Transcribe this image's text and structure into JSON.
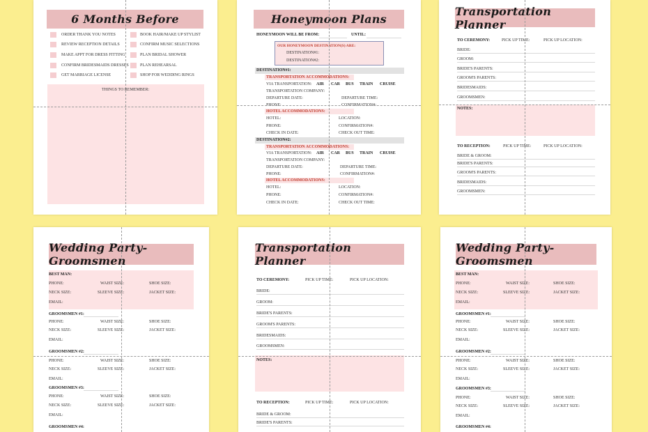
{
  "colors": {
    "background": "#fbee8f",
    "title_bar": "#e9bcbd",
    "pink_box": "#fde3e4",
    "accent": "#c0392b"
  },
  "pages": {
    "months_before": {
      "title": "6 Months Before",
      "left_items": [
        "ORDER THANK YOU NOTES",
        "REVIEW RECEPTION DETAILS",
        "MAKE APPT FOR DRESS FITTING",
        "CONFIRM BRIDESMAIDS DRESSES",
        "GET MARRIAGE LICENSE"
      ],
      "right_items": [
        "BOOK HAIR/MAKE UP STYLIST",
        "CONFIRM MUSIC SELECTIONS",
        "PLAN BRIDAL SHOWER",
        "PLAN REHEARSAL",
        "SHOP FOR WEDDING RINGS"
      ],
      "remember_label": "THINGS TO REMEMBER:"
    },
    "honeymoon": {
      "title": "Honeymoon Plans",
      "will_be_from": "HONEYMOON WILL BE FROM:",
      "until": "UNTIL:",
      "destinations_heading": "OUR HONEYMOON DESTINATION(S) ARE:",
      "dest1_label": "DESTINATION#1:",
      "dest2_label": "DESTINATION#2:",
      "section1": "DESTINATION#1:",
      "section2": "DESTINATION#2:",
      "transport_heading": "TRANSPORTATION ACCOMMODATIONS:",
      "via": "VIA TRANSPORTATION:",
      "modes": [
        "AIR",
        "CAR",
        "BUS",
        "TRAIN",
        "CRUISE"
      ],
      "company": "TRANSPORTATION COMPANY:",
      "departure_date": "DEPARTURE DATE:",
      "departure_time": "DEPARTURE TIME:",
      "phone": "PHONE:",
      "confirmation": "CONFIRMATION#:",
      "hotel_heading": "HOTEL ACCOMMODATIONS:",
      "hotel": "HOTEL:",
      "location": "LOCATION:",
      "check_in": "CHECK IN DATE:",
      "check_out": "CHECK OUT TIME:"
    },
    "transport": {
      "title": "Transportation Planner",
      "to_ceremony": "TO CEREMONY:",
      "pick_up_time": "PICK UP TIME:",
      "pick_up_location": "PICK UP LOCATION:",
      "ceremony_rows": [
        "BRIDE:",
        "GROOM:",
        "BRIDE'S PARENTS:",
        "GROOM'S PARENTS:",
        "BRIDESMAIDS:",
        "GROOMSMEN:"
      ],
      "notes": "NOTES:",
      "to_reception": "TO RECEPTION:",
      "reception_rows": [
        "BRIDE & GROOM:",
        "BRIDE'S PARENTS:",
        "GROOM'S PARENTS:",
        "BRIDESMAIDS:",
        "GROOMSMEN:"
      ]
    },
    "groomsmen": {
      "title": "Wedding Party- Groomsmen",
      "best_man": "BEST MAN:",
      "phone": "PHONE:",
      "waist": "WAIST SIZE:",
      "shoe": "SHOE SIZE:",
      "neck": "NECK SIZE:",
      "sleeve": "SLEEVE SIZE:",
      "jacket": "JACKET SIZE:",
      "email": "EMAIL:",
      "g1": "GROOMSMEN #1:",
      "g2": "GROOMSMEN #2:",
      "g3": "GROOMSMEN #3:",
      "g4": "GROOMSMEN #4:"
    }
  }
}
